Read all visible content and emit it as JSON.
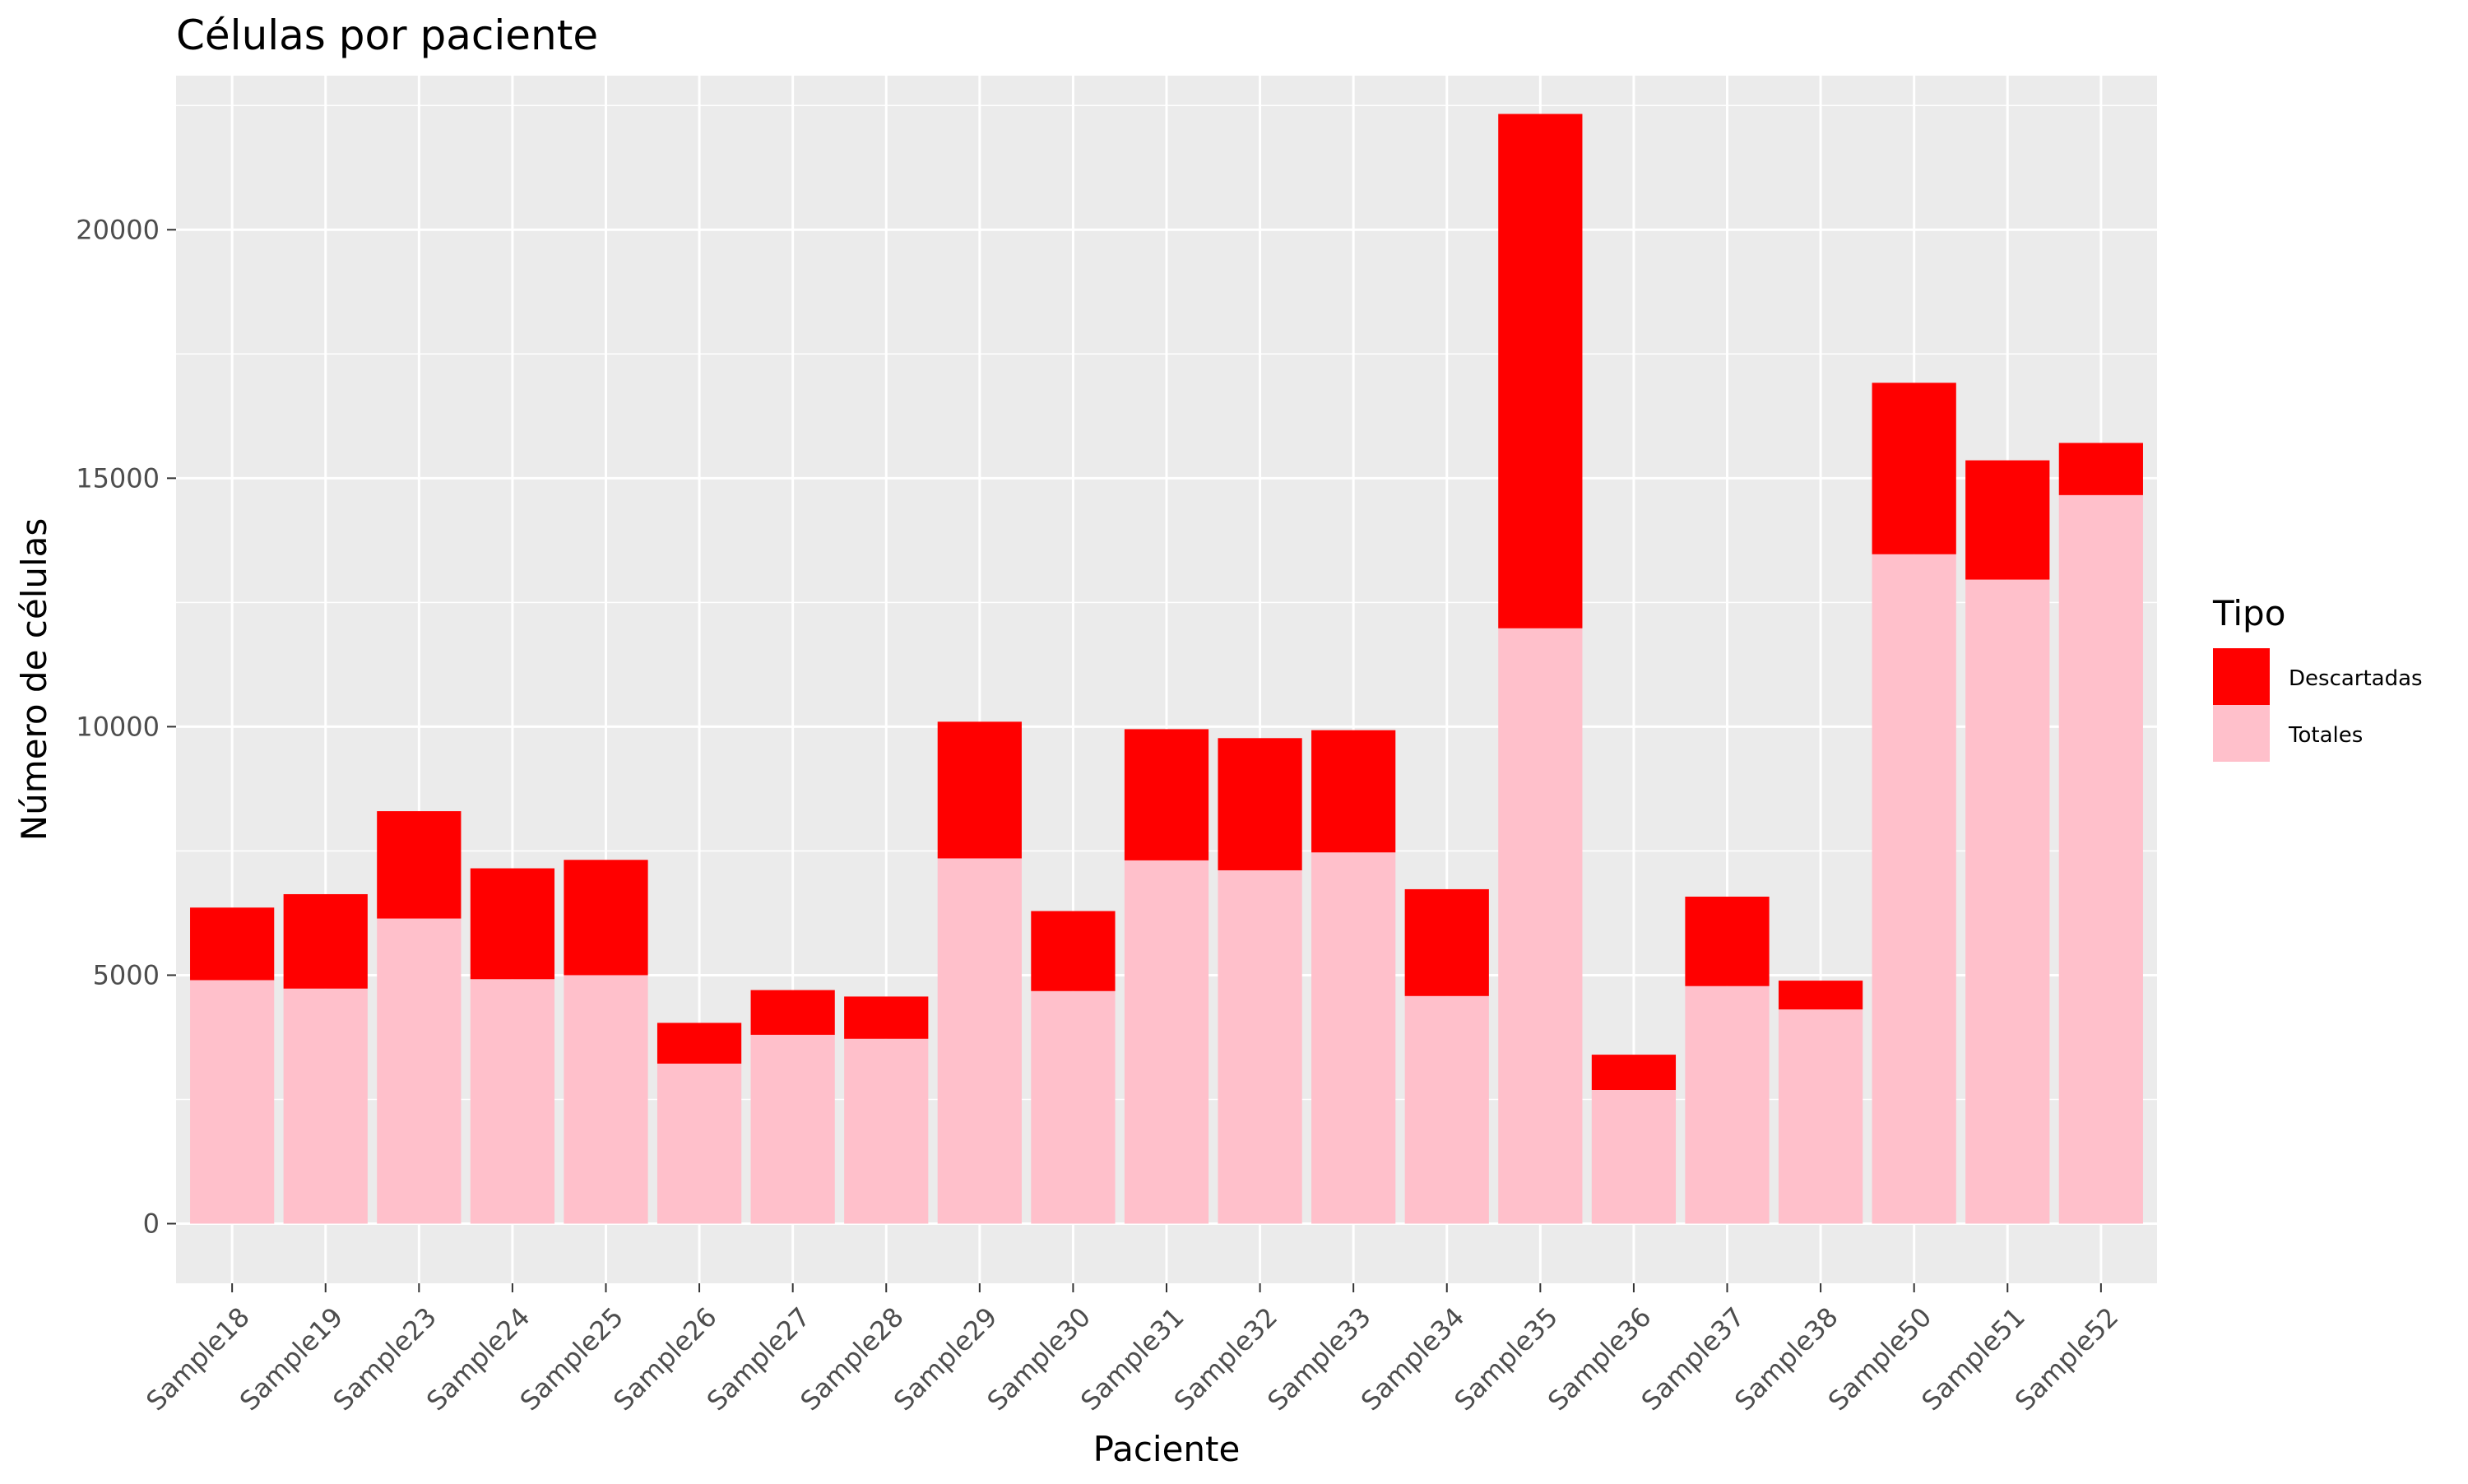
{
  "chart_data": {
    "type": "bar",
    "stacked": true,
    "title": "Células por paciente",
    "xlabel": "Paciente",
    "ylabel": "Número de células",
    "ylim": [
      -1200,
      23100
    ],
    "yticks": [
      0,
      5000,
      10000,
      15000,
      20000
    ],
    "grid": true,
    "legend": {
      "title": "Tipo",
      "placement": "right",
      "entries": [
        {
          "name": "Descartadas",
          "color": "#FF0000"
        },
        {
          "name": "Totales",
          "color": "#FFC0CB"
        }
      ]
    },
    "categories": [
      "Sample18",
      "Sample19",
      "Sample23",
      "Sample24",
      "Sample25",
      "Sample26",
      "Sample27",
      "Sample28",
      "Sample29",
      "Sample30",
      "Sample31",
      "Sample32",
      "Sample33",
      "Sample34",
      "Sample35",
      "Sample36",
      "Sample37",
      "Sample38",
      "Sample50",
      "Sample51",
      "Sample52"
    ],
    "series": [
      {
        "name": "Totales",
        "color": "#FFC0CB",
        "values": [
          4900,
          4730,
          6140,
          4920,
          5000,
          3220,
          3800,
          3720,
          7350,
          4680,
          7310,
          7110,
          7470,
          4580,
          11980,
          2690,
          4780,
          4310,
          13470,
          12960,
          14660
        ]
      },
      {
        "name": "Descartadas",
        "color": "#FF0000",
        "values": [
          1460,
          1900,
          2160,
          2230,
          2320,
          820,
          900,
          850,
          2750,
          1610,
          2640,
          2660,
          2460,
          2150,
          10350,
          710,
          1800,
          580,
          3450,
          2400,
          1050
        ]
      }
    ]
  }
}
